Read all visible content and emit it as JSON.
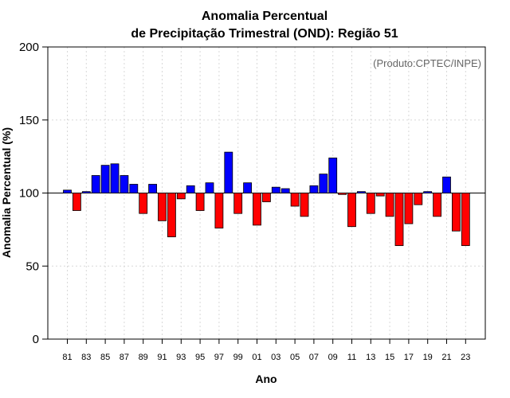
{
  "chart_data": {
    "type": "bar",
    "title": "Anomalia Percentual",
    "subtitle": "de Precipitação Trimestral (OND): Região 51",
    "xlabel": "Ano",
    "ylabel": "Anomalia Percentual (%)",
    "credit": "(Produto:CPTEC/INPE)",
    "ylim": [
      0,
      200
    ],
    "yticks": [
      "0",
      "50",
      "100",
      "150",
      "200"
    ],
    "baseline": 100,
    "grid": true,
    "categories": [
      "81",
      "82",
      "83",
      "84",
      "85",
      "86",
      "87",
      "88",
      "89",
      "90",
      "91",
      "92",
      "93",
      "94",
      "95",
      "96",
      "97",
      "98",
      "99",
      "00",
      "01",
      "02",
      "03",
      "04",
      "05",
      "06",
      "07",
      "08",
      "09",
      "10",
      "11",
      "12",
      "13",
      "14",
      "15",
      "16",
      "17",
      "18",
      "19",
      "20",
      "21",
      "22",
      "23"
    ],
    "xtick_labels": [
      "81",
      "83",
      "85",
      "87",
      "89",
      "91",
      "93",
      "95",
      "97",
      "99",
      "01",
      "03",
      "05",
      "07",
      "09",
      "11",
      "13",
      "15",
      "17",
      "19",
      "21",
      "23"
    ],
    "values": [
      102,
      88,
      101,
      112,
      119,
      120,
      112,
      106,
      86,
      106,
      81,
      70,
      96,
      105,
      88,
      107,
      76,
      128,
      86,
      107,
      78,
      94,
      104,
      103,
      91,
      84,
      105,
      113,
      124,
      99,
      77,
      101,
      86,
      98,
      84,
      64,
      79,
      92,
      101,
      84,
      111,
      74,
      64
    ],
    "colors": {
      "above": "#0000ff",
      "below": "#ff0000",
      "outline": "#000000",
      "grid": "#d8d8d8",
      "baseline": "#000000"
    }
  }
}
